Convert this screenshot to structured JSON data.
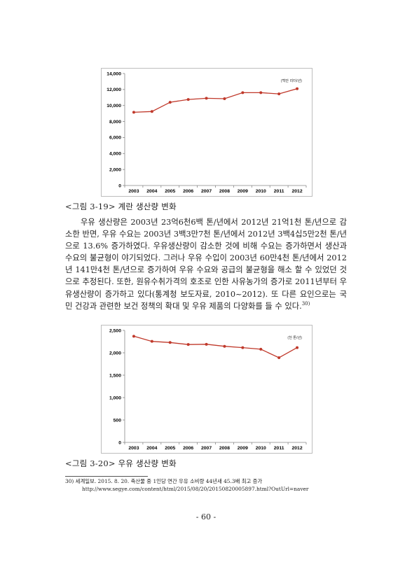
{
  "chart_data": [
    {
      "type": "line",
      "categories": [
        "2003",
        "2004",
        "2005",
        "2006",
        "2007",
        "2008",
        "2009",
        "2010",
        "2011",
        "2012"
      ],
      "series": [
        {
          "values": [
            9150,
            9250,
            10400,
            10750,
            10900,
            10850,
            11600,
            11600,
            11450,
            12100
          ]
        }
      ],
      "ylim": [
        0,
        14000
      ],
      "yticks": [
        0,
        2000,
        4000,
        6000,
        8000,
        10000,
        12000,
        14000
      ],
      "ytick_labels": [
        "0",
        "2,000",
        "4,000",
        "6,000",
        "8,000",
        "10,000",
        "12,000",
        "14,000"
      ],
      "unit_label": "(백만 리터/년)",
      "grid": false,
      "color": "#c0392b"
    },
    {
      "type": "line",
      "categories": [
        "2003",
        "2004",
        "2005",
        "2006",
        "2007",
        "2008",
        "2009",
        "2010",
        "2011",
        "2012"
      ],
      "series": [
        {
          "values": [
            2370,
            2255,
            2230,
            2185,
            2190,
            2145,
            2115,
            2080,
            1890,
            2115
          ]
        }
      ],
      "ylim": [
        0,
        2500
      ],
      "yticks": [
        0,
        500,
        1000,
        1500,
        2000,
        2500
      ],
      "ytick_labels": [
        "0",
        "500",
        "1,000",
        "1,500",
        "2,000",
        "2,500"
      ],
      "unit_label": "(천 톤/년)",
      "grid": false,
      "color": "#c0392b"
    }
  ],
  "captions": {
    "fig1": "<그림 3-19> 계란 생산량 변화",
    "fig2": "<그림 3-20> 우유 생산량 변화"
  },
  "paragraph": {
    "text": "우유 생산량은 2003년 23억6천6백 톤/년에서 2012년 21억1천 톤/년으로 감소한 반면, 우유 수요는 2003년 3백3만7천 톤/년에서 2012년 3백4십5만2천 톤/년으로 13.6% 증가하였다. 우유생산량이 감소한 것에 비해 수요는 증가하면서 생산과 수요의 불균형이 야기되었다. 그러나 우유 수입이 2003년 60만4천 톤/년에서 2012년 141만4천 톤/년으로 증가하여 우유 수요와 공급의 불균형을 해소 할 수 있었던 것으로 추정된다. 또한, 원유수취가격의 호조로 인한 사유농가의 증가로 2011년부터 우유생산량이 증가하고 있다(통계청 보도자료, 2010~2012). 또 다른 요인으로는 국민 건강과 관련한 보건 정책의 확대 및 우유 제품의 다양화를 들 수 있다.",
    "footnote_ref": "30)"
  },
  "footnote": {
    "number": "30)",
    "line1": "세계일보. 2015. 8. 20. 축산물 중 1인당 연간 우유 소비량 44년새 45.3배 최고 증가",
    "line2": "http://www.segye.com/content/html/2015/08/20/20150820005897.html?OutUrl=naver"
  },
  "page_number": "- 60 -"
}
